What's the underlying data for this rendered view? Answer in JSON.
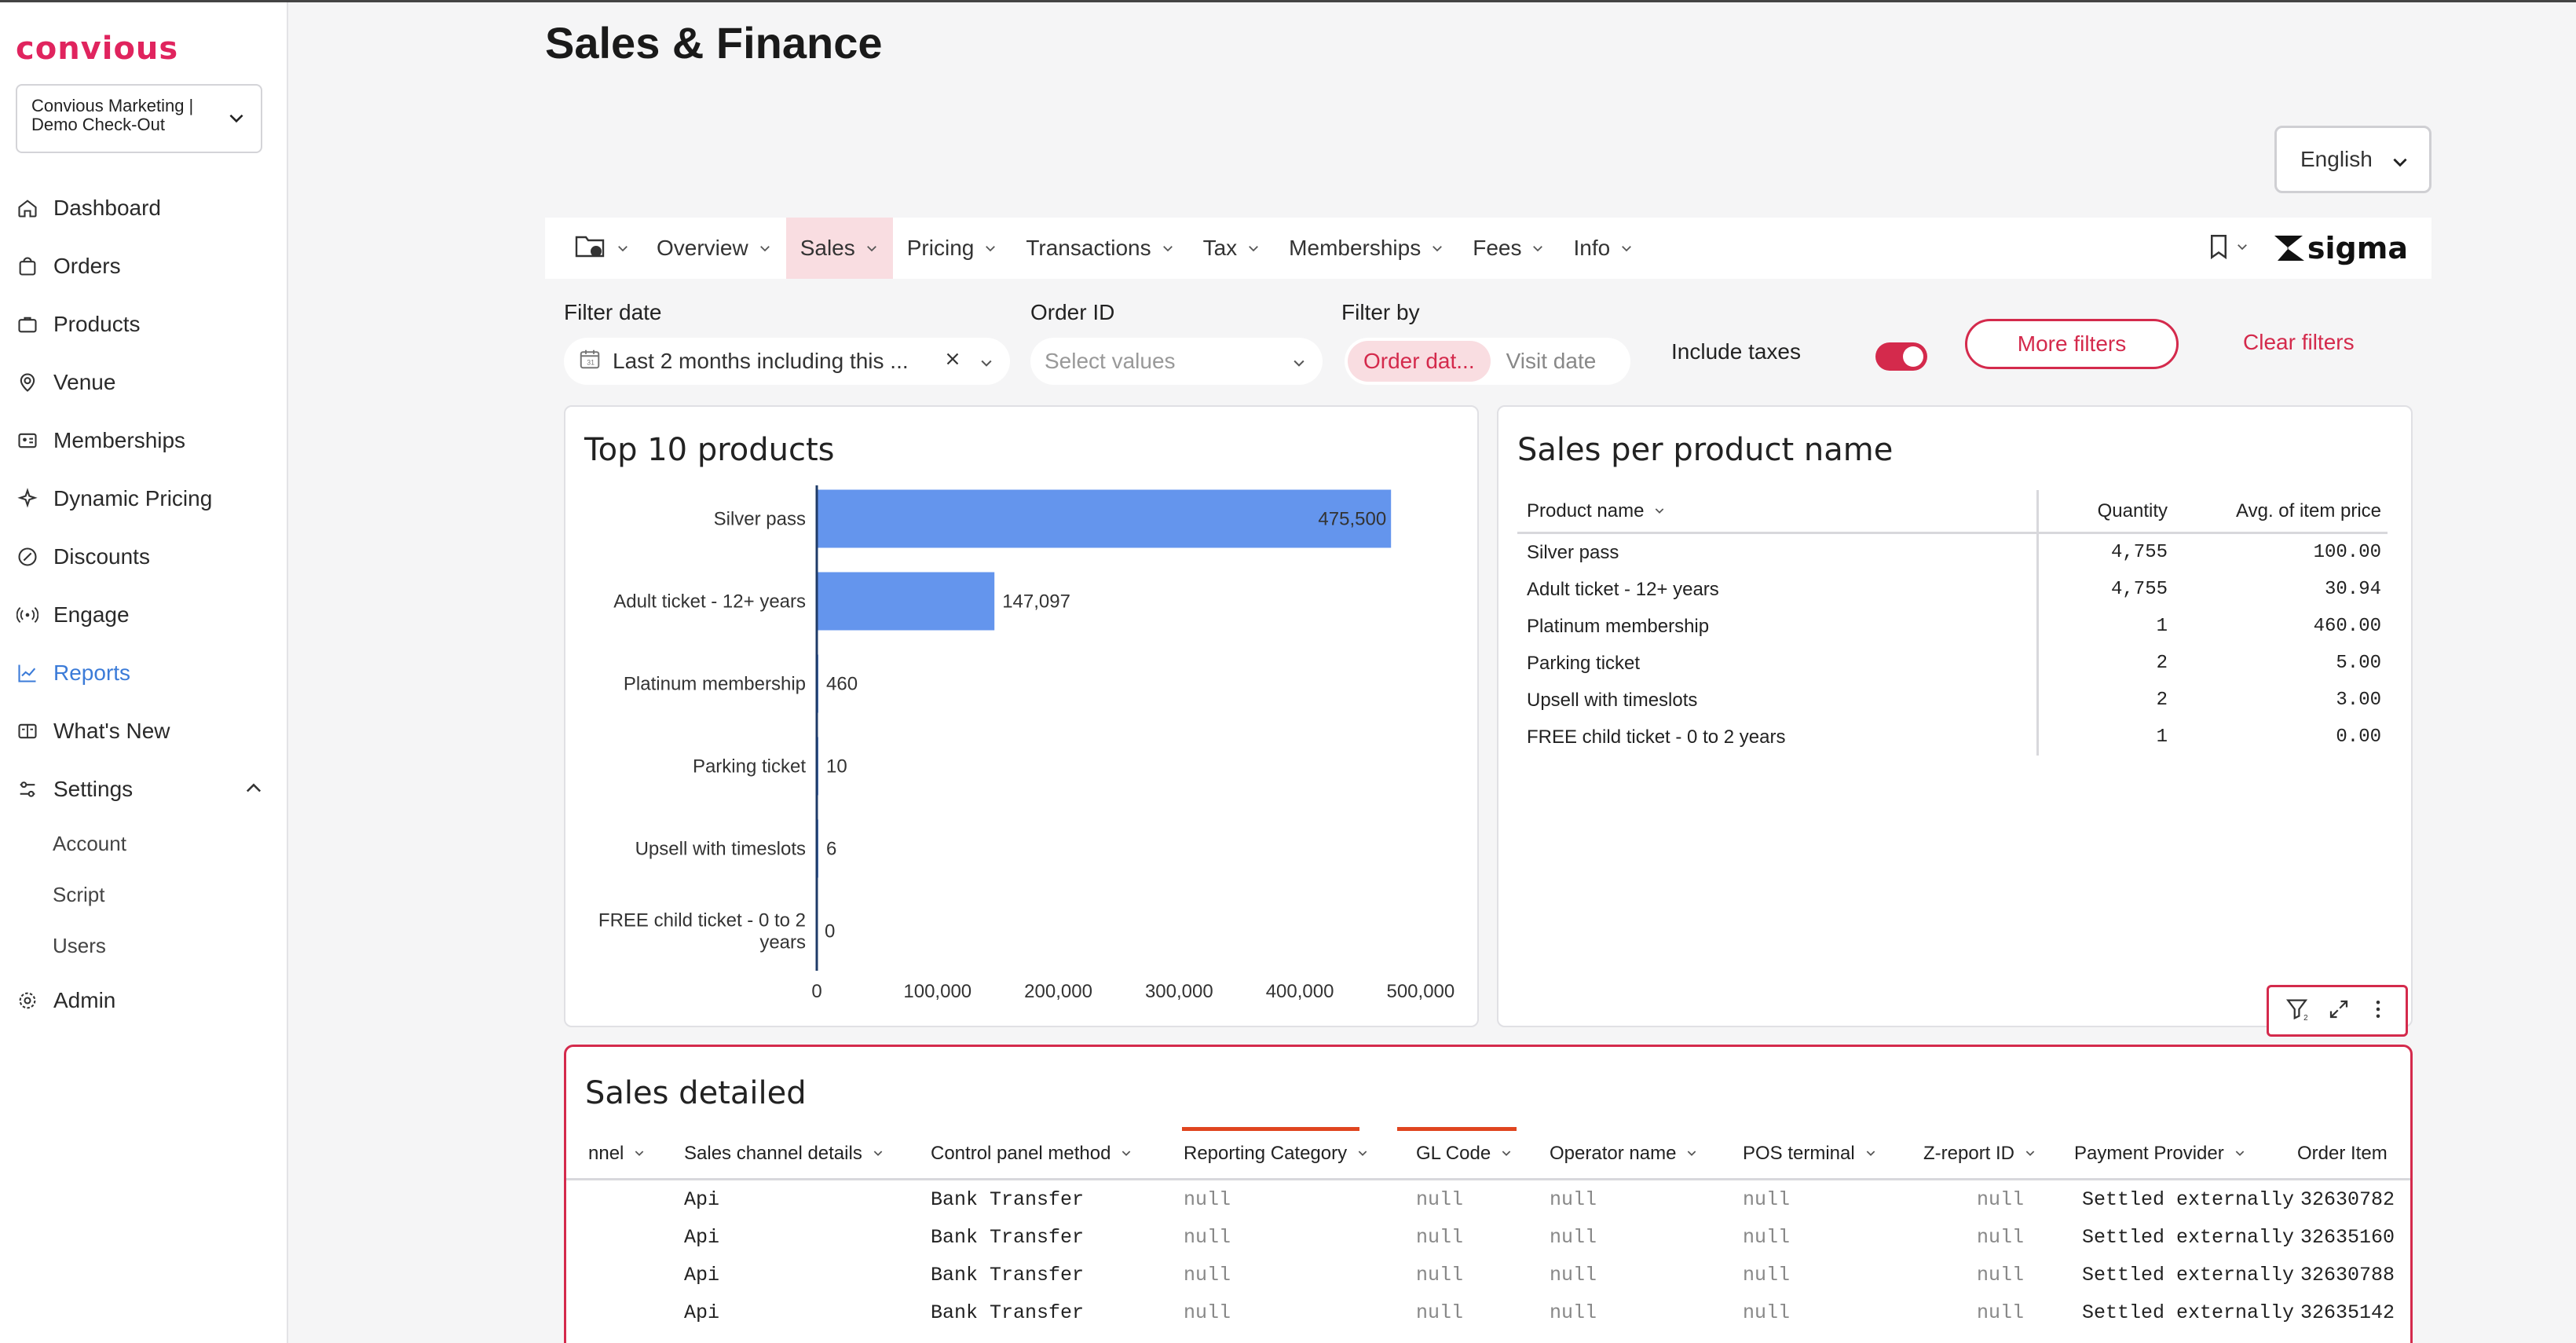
{
  "brand": {
    "logo": "convious",
    "color": "#e0245e"
  },
  "account": {
    "line1": "Convious Marketing |",
    "line2": "Demo Check-Out"
  },
  "nav": [
    {
      "label": "Dashboard",
      "icon": "home-icon"
    },
    {
      "label": "Orders",
      "icon": "bag-icon"
    },
    {
      "label": "Products",
      "icon": "briefcase-icon"
    },
    {
      "label": "Venue",
      "icon": "location-pin-icon"
    },
    {
      "label": "Memberships",
      "icon": "id-card-icon"
    },
    {
      "label": "Dynamic Pricing",
      "icon": "sparkle-icon"
    },
    {
      "label": "Discounts",
      "icon": "percent-badge-icon"
    },
    {
      "label": "Engage",
      "icon": "broadcast-icon"
    },
    {
      "label": "Reports",
      "icon": "chart-line-icon",
      "active": true
    },
    {
      "label": "What's New",
      "icon": "news-icon"
    },
    {
      "label": "Settings",
      "icon": "sliders-icon",
      "expanded": true
    }
  ],
  "settings_sub": [
    "Account",
    "Script",
    "Users"
  ],
  "admin": {
    "label": "Admin",
    "icon": "gear-icon"
  },
  "page": {
    "title": "Sales & Finance"
  },
  "language": {
    "value": "English"
  },
  "tabs": [
    {
      "label": "Overview"
    },
    {
      "label": "Sales",
      "active": true
    },
    {
      "label": "Pricing"
    },
    {
      "label": "Transactions"
    },
    {
      "label": "Tax"
    },
    {
      "label": "Memberships"
    },
    {
      "label": "Fees"
    },
    {
      "label": "Info"
    }
  ],
  "sigma_logo": "sigma",
  "filters": {
    "filter_date_label": "Filter date",
    "filter_date_value": "Last 2 months including this ...",
    "order_id_label": "Order ID",
    "order_id_placeholder": "Select values",
    "filter_by_label": "Filter by",
    "filter_by_options": [
      "Order dat...",
      "Visit date"
    ],
    "include_taxes_label": "Include taxes",
    "include_taxes_on": true,
    "more_filters": "More filters",
    "clear_filters": "Clear filters",
    "accent": "#d42a4c"
  },
  "top_products": {
    "title": "Top 10 products",
    "bar_color": "#6495ed"
  },
  "chart_data": {
    "type": "bar",
    "orientation": "horizontal",
    "categories": [
      "Silver pass",
      "Adult ticket - 12+ years",
      "Platinum membership",
      "Parking ticket",
      "Upsell with timeslots",
      "FREE child ticket - 0 to 2 years"
    ],
    "values": [
      475500,
      147097,
      460,
      10,
      6,
      0
    ],
    "value_labels": [
      "475,500",
      "147,097",
      "460",
      "10",
      "6",
      "0"
    ],
    "x_ticks": [
      "0",
      "100,000",
      "200,000",
      "300,000",
      "400,000",
      "500,000"
    ],
    "xlim": [
      0,
      530000
    ],
    "grid": false
  },
  "sales_per_product": {
    "title": "Sales per product name",
    "columns": [
      "Product name",
      "Quantity",
      "Avg. of item price"
    ],
    "rows": [
      [
        "Silver pass",
        "4,755",
        "100.00"
      ],
      [
        "Adult ticket - 12+ years",
        "4,755",
        "30.94"
      ],
      [
        "Platinum membership",
        "1",
        "460.00"
      ],
      [
        "Parking ticket",
        "2",
        "5.00"
      ],
      [
        "Upsell with timeslots",
        "2",
        "3.00"
      ],
      [
        "FREE child ticket - 0 to 2 years",
        "1",
        "0.00"
      ]
    ]
  },
  "sales_detailed": {
    "title": "Sales detailed",
    "columns": [
      "nnel",
      "Sales channel details",
      "Control panel method",
      "Reporting Category",
      "GL Code",
      "Operator name",
      "POS terminal",
      "Z-report ID",
      "Payment Provider",
      "Order Item"
    ],
    "rows": [
      [
        "",
        "Api",
        "Bank Transfer",
        "null",
        "null",
        "null",
        "null",
        "null",
        "Settled externally",
        "32630782"
      ],
      [
        "",
        "Api",
        "Bank Transfer",
        "null",
        "null",
        "null",
        "null",
        "null",
        "Settled externally",
        "32635160"
      ],
      [
        "",
        "Api",
        "Bank Transfer",
        "null",
        "null",
        "null",
        "null",
        "null",
        "Settled externally",
        "32630788"
      ],
      [
        "",
        "Api",
        "Bank Transfer",
        "null",
        "null",
        "null",
        "null",
        "null",
        "Settled externally",
        "32635142"
      ]
    ]
  }
}
